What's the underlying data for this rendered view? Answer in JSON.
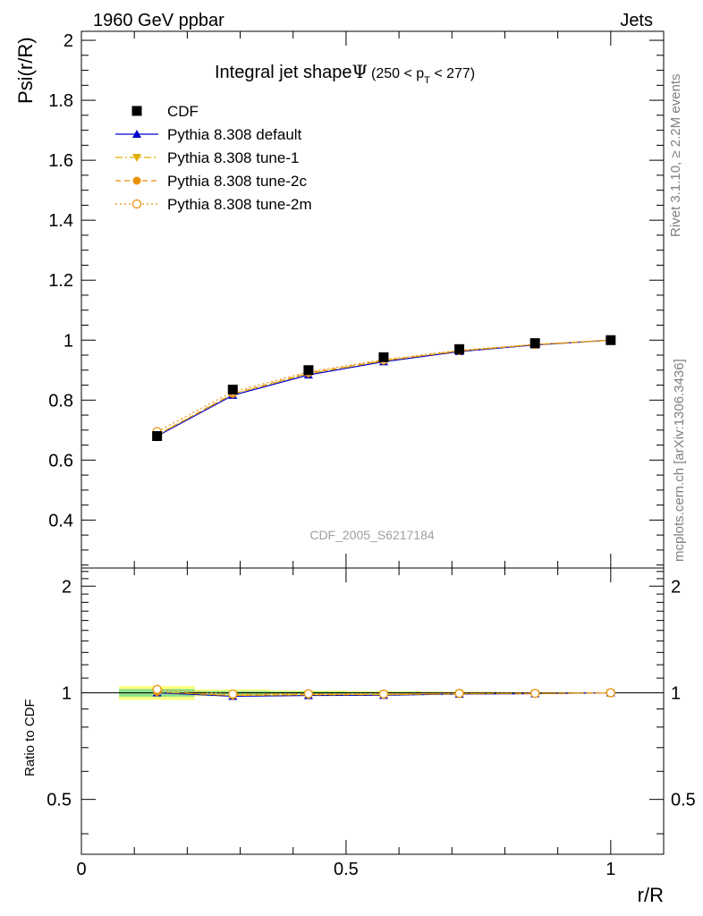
{
  "header": {
    "left": "1960 GeV ppbar",
    "right": "Jets"
  },
  "side": {
    "rivet": "Rivet 3.1.10, ≥ 2.2M events",
    "mcplots": "mcplots.cern.ch [arXiv:1306.3436]"
  },
  "chart_data": {
    "type": "line",
    "title_main": "Integral jet shape",
    "title_psi": "Ψ",
    "title_range_left": "(250 < p",
    "title_range_sub": "T",
    "title_range_right": " < 277)",
    "ylabel": "Psi(r/R)",
    "xlabel": "r/R",
    "watermark": "CDF_2005_S6217184",
    "ratio_ylabel": "Ratio to CDF",
    "xlim": [
      0,
      1.1
    ],
    "ylim": [
      0.24,
      2.03
    ],
    "ratio_ylim": [
      0.35,
      2.25
    ],
    "x_ticks": [
      0,
      0.5,
      1
    ],
    "x_tick_labels": [
      "0",
      "0.5",
      "1"
    ],
    "y_ticks": [
      0.4,
      0.6,
      0.8,
      1,
      1.2,
      1.4,
      1.6,
      1.8,
      2
    ],
    "y_tick_labels": [
      "0.4",
      "0.6",
      "0.8",
      "1",
      "1.2",
      "1.4",
      "1.6",
      "1.8",
      "2"
    ],
    "ratio_ticks": [
      0.5,
      1,
      2
    ],
    "ratio_tick_labels": [
      "0.5",
      "1",
      "2"
    ],
    "legend_position": "top-left",
    "x": [
      0.143,
      0.286,
      0.429,
      0.571,
      0.714,
      0.857,
      1.0
    ],
    "x_bins": [
      [
        0.071,
        0.214
      ],
      [
        0.214,
        0.357
      ],
      [
        0.357,
        0.5
      ],
      [
        0.5,
        0.643
      ],
      [
        0.643,
        0.786
      ],
      [
        0.786,
        0.929
      ],
      [
        0.929,
        1.071
      ]
    ],
    "data": {
      "name": "CDF",
      "values": [
        0.68,
        0.835,
        0.9,
        0.943,
        0.97,
        0.99,
        1.0
      ],
      "ratio_band_inner": [
        0.025,
        0.012,
        0.008,
        0.006,
        0.004,
        0.002,
        0.001
      ],
      "ratio_band_outer": [
        0.045,
        0.022,
        0.015,
        0.011,
        0.007,
        0.004,
        0.002
      ]
    },
    "series": [
      {
        "name": "Pythia 8.308 default",
        "color": "#0000cc",
        "marker": "triangle-up",
        "dash": "",
        "values": [
          0.68,
          0.816,
          0.884,
          0.928,
          0.962,
          0.984,
          1.0
        ]
      },
      {
        "name": "Pythia 8.308 tune-1",
        "color": "#e0b000",
        "marker": "triangle-down",
        "dash": "8,3,2,3",
        "values": [
          0.683,
          0.82,
          0.888,
          0.931,
          0.964,
          0.985,
          1.0
        ]
      },
      {
        "name": "Pythia 8.308 tune-2c",
        "color": "#e8920a",
        "marker": "circle-filled",
        "dash": "6,4",
        "values": [
          0.684,
          0.821,
          0.89,
          0.932,
          0.964,
          0.985,
          1.0
        ]
      },
      {
        "name": "Pythia 8.308 tune-2m",
        "color": "#e8920a",
        "marker": "circle-open",
        "dash": "2,3",
        "values": [
          0.695,
          0.828,
          0.894,
          0.935,
          0.966,
          0.986,
          1.0
        ]
      }
    ]
  }
}
